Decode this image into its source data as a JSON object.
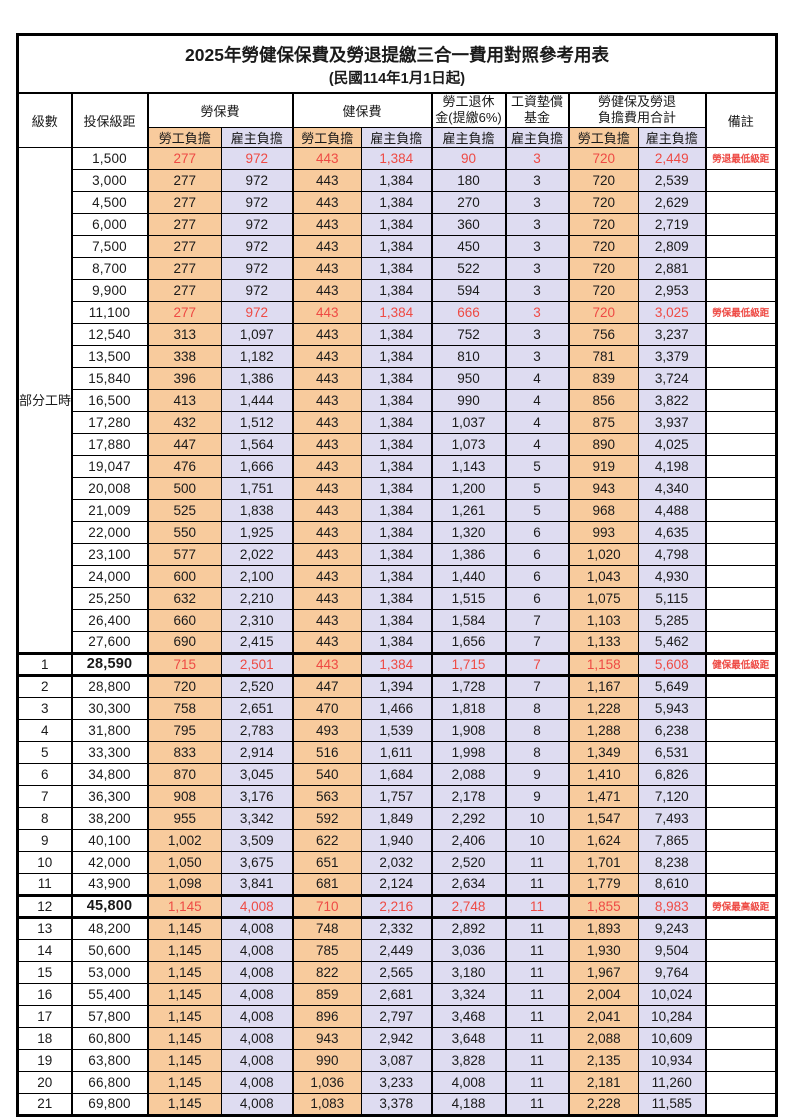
{
  "title": "2025年勞健保保費及勞退提繳三合一費用對照參考用表",
  "subtitle": "(民國114年1月1日起)",
  "colors": {
    "employee_fill": "#f8cb9d",
    "employer_fill": "#dedcf1",
    "highlight_red": "#ee4a44",
    "border": "#000000"
  },
  "header": {
    "level": "級數",
    "bracket": "投保級距",
    "labor_insurance": "勞保費",
    "health_insurance": "健保費",
    "pension_line1": "勞工退休",
    "pension_line2": "金(提繳6%)",
    "wage_fund_line1": "工資墊償",
    "wage_fund_line2": "基金",
    "total_line1": "勞健保及勞退",
    "total_line2": "負擔費用合計",
    "remark": "備註",
    "employee_share": "勞工負擔",
    "employer_share": "雇主負擔"
  },
  "part_time_label": "部分工時",
  "part_time_rowspan": 23,
  "rows": [
    {
      "level": "",
      "bracket": "1,500",
      "li_emp": "277",
      "li_er": "972",
      "hi_emp": "443",
      "hi_er": "1,384",
      "pension": "90",
      "wage": "3",
      "tot_emp": "720",
      "tot_er": "2,449",
      "remark": "勞退最低級距",
      "red": true,
      "bold": false,
      "emphasis": false
    },
    {
      "level": "",
      "bracket": "3,000",
      "li_emp": "277",
      "li_er": "972",
      "hi_emp": "443",
      "hi_er": "1,384",
      "pension": "180",
      "wage": "3",
      "tot_emp": "720",
      "tot_er": "2,539",
      "remark": "",
      "red": false,
      "bold": false,
      "emphasis": false
    },
    {
      "level": "",
      "bracket": "4,500",
      "li_emp": "277",
      "li_er": "972",
      "hi_emp": "443",
      "hi_er": "1,384",
      "pension": "270",
      "wage": "3",
      "tot_emp": "720",
      "tot_er": "2,629",
      "remark": "",
      "red": false,
      "bold": false,
      "emphasis": false
    },
    {
      "level": "",
      "bracket": "6,000",
      "li_emp": "277",
      "li_er": "972",
      "hi_emp": "443",
      "hi_er": "1,384",
      "pension": "360",
      "wage": "3",
      "tot_emp": "720",
      "tot_er": "2,719",
      "remark": "",
      "red": false,
      "bold": false,
      "emphasis": false
    },
    {
      "level": "",
      "bracket": "7,500",
      "li_emp": "277",
      "li_er": "972",
      "hi_emp": "443",
      "hi_er": "1,384",
      "pension": "450",
      "wage": "3",
      "tot_emp": "720",
      "tot_er": "2,809",
      "remark": "",
      "red": false,
      "bold": false,
      "emphasis": false
    },
    {
      "level": "",
      "bracket": "8,700",
      "li_emp": "277",
      "li_er": "972",
      "hi_emp": "443",
      "hi_er": "1,384",
      "pension": "522",
      "wage": "3",
      "tot_emp": "720",
      "tot_er": "2,881",
      "remark": "",
      "red": false,
      "bold": false,
      "emphasis": false
    },
    {
      "level": "",
      "bracket": "9,900",
      "li_emp": "277",
      "li_er": "972",
      "hi_emp": "443",
      "hi_er": "1,384",
      "pension": "594",
      "wage": "3",
      "tot_emp": "720",
      "tot_er": "2,953",
      "remark": "",
      "red": false,
      "bold": false,
      "emphasis": false
    },
    {
      "level": "",
      "bracket": "11,100",
      "li_emp": "277",
      "li_er": "972",
      "hi_emp": "443",
      "hi_er": "1,384",
      "pension": "666",
      "wage": "3",
      "tot_emp": "720",
      "tot_er": "3,025",
      "remark": "勞保最低級距",
      "red": true,
      "bold": false,
      "emphasis": false
    },
    {
      "level": "",
      "bracket": "12,540",
      "li_emp": "313",
      "li_er": "1,097",
      "hi_emp": "443",
      "hi_er": "1,384",
      "pension": "752",
      "wage": "3",
      "tot_emp": "756",
      "tot_er": "3,237",
      "remark": "",
      "red": false,
      "bold": false,
      "emphasis": false
    },
    {
      "level": "",
      "bracket": "13,500",
      "li_emp": "338",
      "li_er": "1,182",
      "hi_emp": "443",
      "hi_er": "1,384",
      "pension": "810",
      "wage": "3",
      "tot_emp": "781",
      "tot_er": "3,379",
      "remark": "",
      "red": false,
      "bold": false,
      "emphasis": false
    },
    {
      "level": "",
      "bracket": "15,840",
      "li_emp": "396",
      "li_er": "1,386",
      "hi_emp": "443",
      "hi_er": "1,384",
      "pension": "950",
      "wage": "4",
      "tot_emp": "839",
      "tot_er": "3,724",
      "remark": "",
      "red": false,
      "bold": false,
      "emphasis": false
    },
    {
      "level": "",
      "bracket": "16,500",
      "li_emp": "413",
      "li_er": "1,444",
      "hi_emp": "443",
      "hi_er": "1,384",
      "pension": "990",
      "wage": "4",
      "tot_emp": "856",
      "tot_er": "3,822",
      "remark": "",
      "red": false,
      "bold": false,
      "emphasis": false
    },
    {
      "level": "",
      "bracket": "17,280",
      "li_emp": "432",
      "li_er": "1,512",
      "hi_emp": "443",
      "hi_er": "1,384",
      "pension": "1,037",
      "wage": "4",
      "tot_emp": "875",
      "tot_er": "3,937",
      "remark": "",
      "red": false,
      "bold": false,
      "emphasis": false
    },
    {
      "level": "",
      "bracket": "17,880",
      "li_emp": "447",
      "li_er": "1,564",
      "hi_emp": "443",
      "hi_er": "1,384",
      "pension": "1,073",
      "wage": "4",
      "tot_emp": "890",
      "tot_er": "4,025",
      "remark": "",
      "red": false,
      "bold": false,
      "emphasis": false
    },
    {
      "level": "",
      "bracket": "19,047",
      "li_emp": "476",
      "li_er": "1,666",
      "hi_emp": "443",
      "hi_er": "1,384",
      "pension": "1,143",
      "wage": "5",
      "tot_emp": "919",
      "tot_er": "4,198",
      "remark": "",
      "red": false,
      "bold": false,
      "emphasis": false
    },
    {
      "level": "",
      "bracket": "20,008",
      "li_emp": "500",
      "li_er": "1,751",
      "hi_emp": "443",
      "hi_er": "1,384",
      "pension": "1,200",
      "wage": "5",
      "tot_emp": "943",
      "tot_er": "4,340",
      "remark": "",
      "red": false,
      "bold": false,
      "emphasis": false
    },
    {
      "level": "",
      "bracket": "21,009",
      "li_emp": "525",
      "li_er": "1,838",
      "hi_emp": "443",
      "hi_er": "1,384",
      "pension": "1,261",
      "wage": "5",
      "tot_emp": "968",
      "tot_er": "4,488",
      "remark": "",
      "red": false,
      "bold": false,
      "emphasis": false
    },
    {
      "level": "",
      "bracket": "22,000",
      "li_emp": "550",
      "li_er": "1,925",
      "hi_emp": "443",
      "hi_er": "1,384",
      "pension": "1,320",
      "wage": "6",
      "tot_emp": "993",
      "tot_er": "4,635",
      "remark": "",
      "red": false,
      "bold": false,
      "emphasis": false
    },
    {
      "level": "",
      "bracket": "23,100",
      "li_emp": "577",
      "li_er": "2,022",
      "hi_emp": "443",
      "hi_er": "1,384",
      "pension": "1,386",
      "wage": "6",
      "tot_emp": "1,020",
      "tot_er": "4,798",
      "remark": "",
      "red": false,
      "bold": false,
      "emphasis": false
    },
    {
      "level": "",
      "bracket": "24,000",
      "li_emp": "600",
      "li_er": "2,100",
      "hi_emp": "443",
      "hi_er": "1,384",
      "pension": "1,440",
      "wage": "6",
      "tot_emp": "1,043",
      "tot_er": "4,930",
      "remark": "",
      "red": false,
      "bold": false,
      "emphasis": false
    },
    {
      "level": "",
      "bracket": "25,250",
      "li_emp": "632",
      "li_er": "2,210",
      "hi_emp": "443",
      "hi_er": "1,384",
      "pension": "1,515",
      "wage": "6",
      "tot_emp": "1,075",
      "tot_er": "5,115",
      "remark": "",
      "red": false,
      "bold": false,
      "emphasis": false
    },
    {
      "level": "",
      "bracket": "26,400",
      "li_emp": "660",
      "li_er": "2,310",
      "hi_emp": "443",
      "hi_er": "1,384",
      "pension": "1,584",
      "wage": "7",
      "tot_emp": "1,103",
      "tot_er": "5,285",
      "remark": "",
      "red": false,
      "bold": false,
      "emphasis": false
    },
    {
      "level": "",
      "bracket": "27,600",
      "li_emp": "690",
      "li_er": "2,415",
      "hi_emp": "443",
      "hi_er": "1,384",
      "pension": "1,656",
      "wage": "7",
      "tot_emp": "1,133",
      "tot_er": "5,462",
      "remark": "",
      "red": false,
      "bold": false,
      "emphasis": false
    },
    {
      "level": "1",
      "bracket": "28,590",
      "li_emp": "715",
      "li_er": "2,501",
      "hi_emp": "443",
      "hi_er": "1,384",
      "pension": "1,715",
      "wage": "7",
      "tot_emp": "1,158",
      "tot_er": "5,608",
      "remark": "健保最低級距",
      "red": true,
      "bold": true,
      "emphasis": true
    },
    {
      "level": "2",
      "bracket": "28,800",
      "li_emp": "720",
      "li_er": "2,520",
      "hi_emp": "447",
      "hi_er": "1,394",
      "pension": "1,728",
      "wage": "7",
      "tot_emp": "1,167",
      "tot_er": "5,649",
      "remark": "",
      "red": false,
      "bold": false,
      "emphasis": false
    },
    {
      "level": "3",
      "bracket": "30,300",
      "li_emp": "758",
      "li_er": "2,651",
      "hi_emp": "470",
      "hi_er": "1,466",
      "pension": "1,818",
      "wage": "8",
      "tot_emp": "1,228",
      "tot_er": "5,943",
      "remark": "",
      "red": false,
      "bold": false,
      "emphasis": false
    },
    {
      "level": "4",
      "bracket": "31,800",
      "li_emp": "795",
      "li_er": "2,783",
      "hi_emp": "493",
      "hi_er": "1,539",
      "pension": "1,908",
      "wage": "8",
      "tot_emp": "1,288",
      "tot_er": "6,238",
      "remark": "",
      "red": false,
      "bold": false,
      "emphasis": false
    },
    {
      "level": "5",
      "bracket": "33,300",
      "li_emp": "833",
      "li_er": "2,914",
      "hi_emp": "516",
      "hi_er": "1,611",
      "pension": "1,998",
      "wage": "8",
      "tot_emp": "1,349",
      "tot_er": "6,531",
      "remark": "",
      "red": false,
      "bold": false,
      "emphasis": false
    },
    {
      "level": "6",
      "bracket": "34,800",
      "li_emp": "870",
      "li_er": "3,045",
      "hi_emp": "540",
      "hi_er": "1,684",
      "pension": "2,088",
      "wage": "9",
      "tot_emp": "1,410",
      "tot_er": "6,826",
      "remark": "",
      "red": false,
      "bold": false,
      "emphasis": false
    },
    {
      "level": "7",
      "bracket": "36,300",
      "li_emp": "908",
      "li_er": "3,176",
      "hi_emp": "563",
      "hi_er": "1,757",
      "pension": "2,178",
      "wage": "9",
      "tot_emp": "1,471",
      "tot_er": "7,120",
      "remark": "",
      "red": false,
      "bold": false,
      "emphasis": false
    },
    {
      "level": "8",
      "bracket": "38,200",
      "li_emp": "955",
      "li_er": "3,342",
      "hi_emp": "592",
      "hi_er": "1,849",
      "pension": "2,292",
      "wage": "10",
      "tot_emp": "1,547",
      "tot_er": "7,493",
      "remark": "",
      "red": false,
      "bold": false,
      "emphasis": false
    },
    {
      "level": "9",
      "bracket": "40,100",
      "li_emp": "1,002",
      "li_er": "3,509",
      "hi_emp": "622",
      "hi_er": "1,940",
      "pension": "2,406",
      "wage": "10",
      "tot_emp": "1,624",
      "tot_er": "7,865",
      "remark": "",
      "red": false,
      "bold": false,
      "emphasis": false
    },
    {
      "level": "10",
      "bracket": "42,000",
      "li_emp": "1,050",
      "li_er": "3,675",
      "hi_emp": "651",
      "hi_er": "2,032",
      "pension": "2,520",
      "wage": "11",
      "tot_emp": "1,701",
      "tot_er": "8,238",
      "remark": "",
      "red": false,
      "bold": false,
      "emphasis": false
    },
    {
      "level": "11",
      "bracket": "43,900",
      "li_emp": "1,098",
      "li_er": "3,841",
      "hi_emp": "681",
      "hi_er": "2,124",
      "pension": "2,634",
      "wage": "11",
      "tot_emp": "1,779",
      "tot_er": "8,610",
      "remark": "",
      "red": false,
      "bold": false,
      "emphasis": false
    },
    {
      "level": "12",
      "bracket": "45,800",
      "li_emp": "1,145",
      "li_er": "4,008",
      "hi_emp": "710",
      "hi_er": "2,216",
      "pension": "2,748",
      "wage": "11",
      "tot_emp": "1,855",
      "tot_er": "8,983",
      "remark": "勞保最高級距",
      "red": true,
      "bold": true,
      "emphasis": true
    },
    {
      "level": "13",
      "bracket": "48,200",
      "li_emp": "1,145",
      "li_er": "4,008",
      "hi_emp": "748",
      "hi_er": "2,332",
      "pension": "2,892",
      "wage": "11",
      "tot_emp": "1,893",
      "tot_er": "9,243",
      "remark": "",
      "red": false,
      "bold": false,
      "emphasis": false
    },
    {
      "level": "14",
      "bracket": "50,600",
      "li_emp": "1,145",
      "li_er": "4,008",
      "hi_emp": "785",
      "hi_er": "2,449",
      "pension": "3,036",
      "wage": "11",
      "tot_emp": "1,930",
      "tot_er": "9,504",
      "remark": "",
      "red": false,
      "bold": false,
      "emphasis": false
    },
    {
      "level": "15",
      "bracket": "53,000",
      "li_emp": "1,145",
      "li_er": "4,008",
      "hi_emp": "822",
      "hi_er": "2,565",
      "pension": "3,180",
      "wage": "11",
      "tot_emp": "1,967",
      "tot_er": "9,764",
      "remark": "",
      "red": false,
      "bold": false,
      "emphasis": false
    },
    {
      "level": "16",
      "bracket": "55,400",
      "li_emp": "1,145",
      "li_er": "4,008",
      "hi_emp": "859",
      "hi_er": "2,681",
      "pension": "3,324",
      "wage": "11",
      "tot_emp": "2,004",
      "tot_er": "10,024",
      "remark": "",
      "red": false,
      "bold": false,
      "emphasis": false
    },
    {
      "level": "17",
      "bracket": "57,800",
      "li_emp": "1,145",
      "li_er": "4,008",
      "hi_emp": "896",
      "hi_er": "2,797",
      "pension": "3,468",
      "wage": "11",
      "tot_emp": "2,041",
      "tot_er": "10,284",
      "remark": "",
      "red": false,
      "bold": false,
      "emphasis": false
    },
    {
      "level": "18",
      "bracket": "60,800",
      "li_emp": "1,145",
      "li_er": "4,008",
      "hi_emp": "943",
      "hi_er": "2,942",
      "pension": "3,648",
      "wage": "11",
      "tot_emp": "2,088",
      "tot_er": "10,609",
      "remark": "",
      "red": false,
      "bold": false,
      "emphasis": false
    },
    {
      "level": "19",
      "bracket": "63,800",
      "li_emp": "1,145",
      "li_er": "4,008",
      "hi_emp": "990",
      "hi_er": "3,087",
      "pension": "3,828",
      "wage": "11",
      "tot_emp": "2,135",
      "tot_er": "10,934",
      "remark": "",
      "red": false,
      "bold": false,
      "emphasis": false
    },
    {
      "level": "20",
      "bracket": "66,800",
      "li_emp": "1,145",
      "li_er": "4,008",
      "hi_emp": "1,036",
      "hi_er": "3,233",
      "pension": "4,008",
      "wage": "11",
      "tot_emp": "2,181",
      "tot_er": "11,260",
      "remark": "",
      "red": false,
      "bold": false,
      "emphasis": false
    },
    {
      "level": "21",
      "bracket": "69,800",
      "li_emp": "1,145",
      "li_er": "4,008",
      "hi_emp": "1,083",
      "hi_er": "3,378",
      "pension": "4,188",
      "wage": "11",
      "tot_emp": "2,228",
      "tot_er": "11,585",
      "remark": "",
      "red": false,
      "bold": false,
      "emphasis": false
    }
  ]
}
